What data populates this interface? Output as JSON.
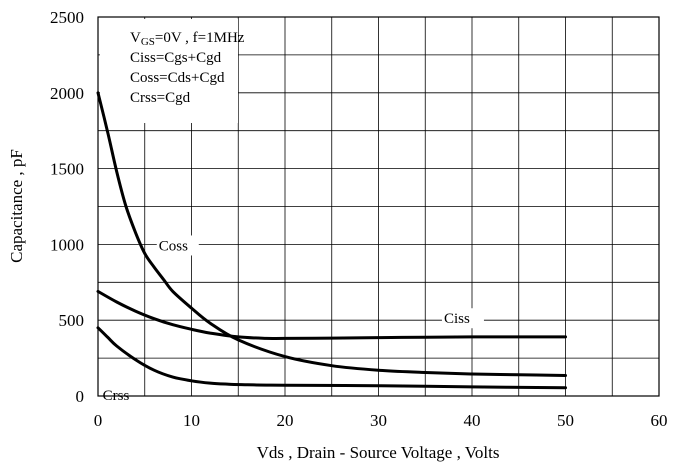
{
  "chart_data": {
    "type": "line",
    "title": "",
    "xlabel": "Vds , Drain - Source Voltage , Volts",
    "ylabel": "Capacitance , pF",
    "xlim": [
      0,
      60
    ],
    "ylim": [
      0,
      2500
    ],
    "x_ticks": [
      0,
      10,
      20,
      30,
      40,
      50,
      60
    ],
    "y_ticks": [
      0,
      500,
      1000,
      1500,
      2000,
      2500
    ],
    "x_grid_step": 5,
    "y_grid_step": 250,
    "grid": true,
    "notes": {
      "condition_prefix": "V",
      "condition_subscript": "GS",
      "condition_suffix": "=0V , f=1MHz",
      "lines": [
        "Ciss=Cgs+Cgd",
        "Coss=Cds+Cgd",
        "Crss=Cgd"
      ]
    },
    "series": [
      {
        "name": "Coss",
        "x": [
          0,
          1,
          2,
          3,
          4,
          5,
          6,
          7,
          8,
          10,
          12,
          15,
          20,
          25,
          30,
          35,
          40,
          45,
          50
        ],
        "values": [
          2000,
          1750,
          1480,
          1250,
          1080,
          940,
          850,
          770,
          690,
          580,
          480,
          370,
          260,
          200,
          170,
          155,
          145,
          140,
          135
        ],
        "label_at": [
          6.5,
          960
        ]
      },
      {
        "name": "Ciss",
        "x": [
          0,
          2,
          4,
          6,
          8,
          10,
          12,
          15,
          18,
          20,
          25,
          30,
          35,
          40,
          45,
          50
        ],
        "values": [
          690,
          620,
          560,
          510,
          470,
          440,
          415,
          390,
          380,
          380,
          382,
          385,
          388,
          390,
          390,
          390
        ],
        "label_at": [
          37,
          480
        ]
      },
      {
        "name": "Crss",
        "x": [
          0,
          1,
          2,
          4,
          6,
          8,
          10,
          12,
          14,
          16,
          18,
          20,
          30,
          40,
          50
        ],
        "values": [
          450,
          390,
          330,
          240,
          170,
          125,
          100,
          85,
          78,
          74,
          72,
          71,
          68,
          60,
          55
        ],
        "label_at": [
          0.5,
          -25
        ]
      }
    ]
  }
}
